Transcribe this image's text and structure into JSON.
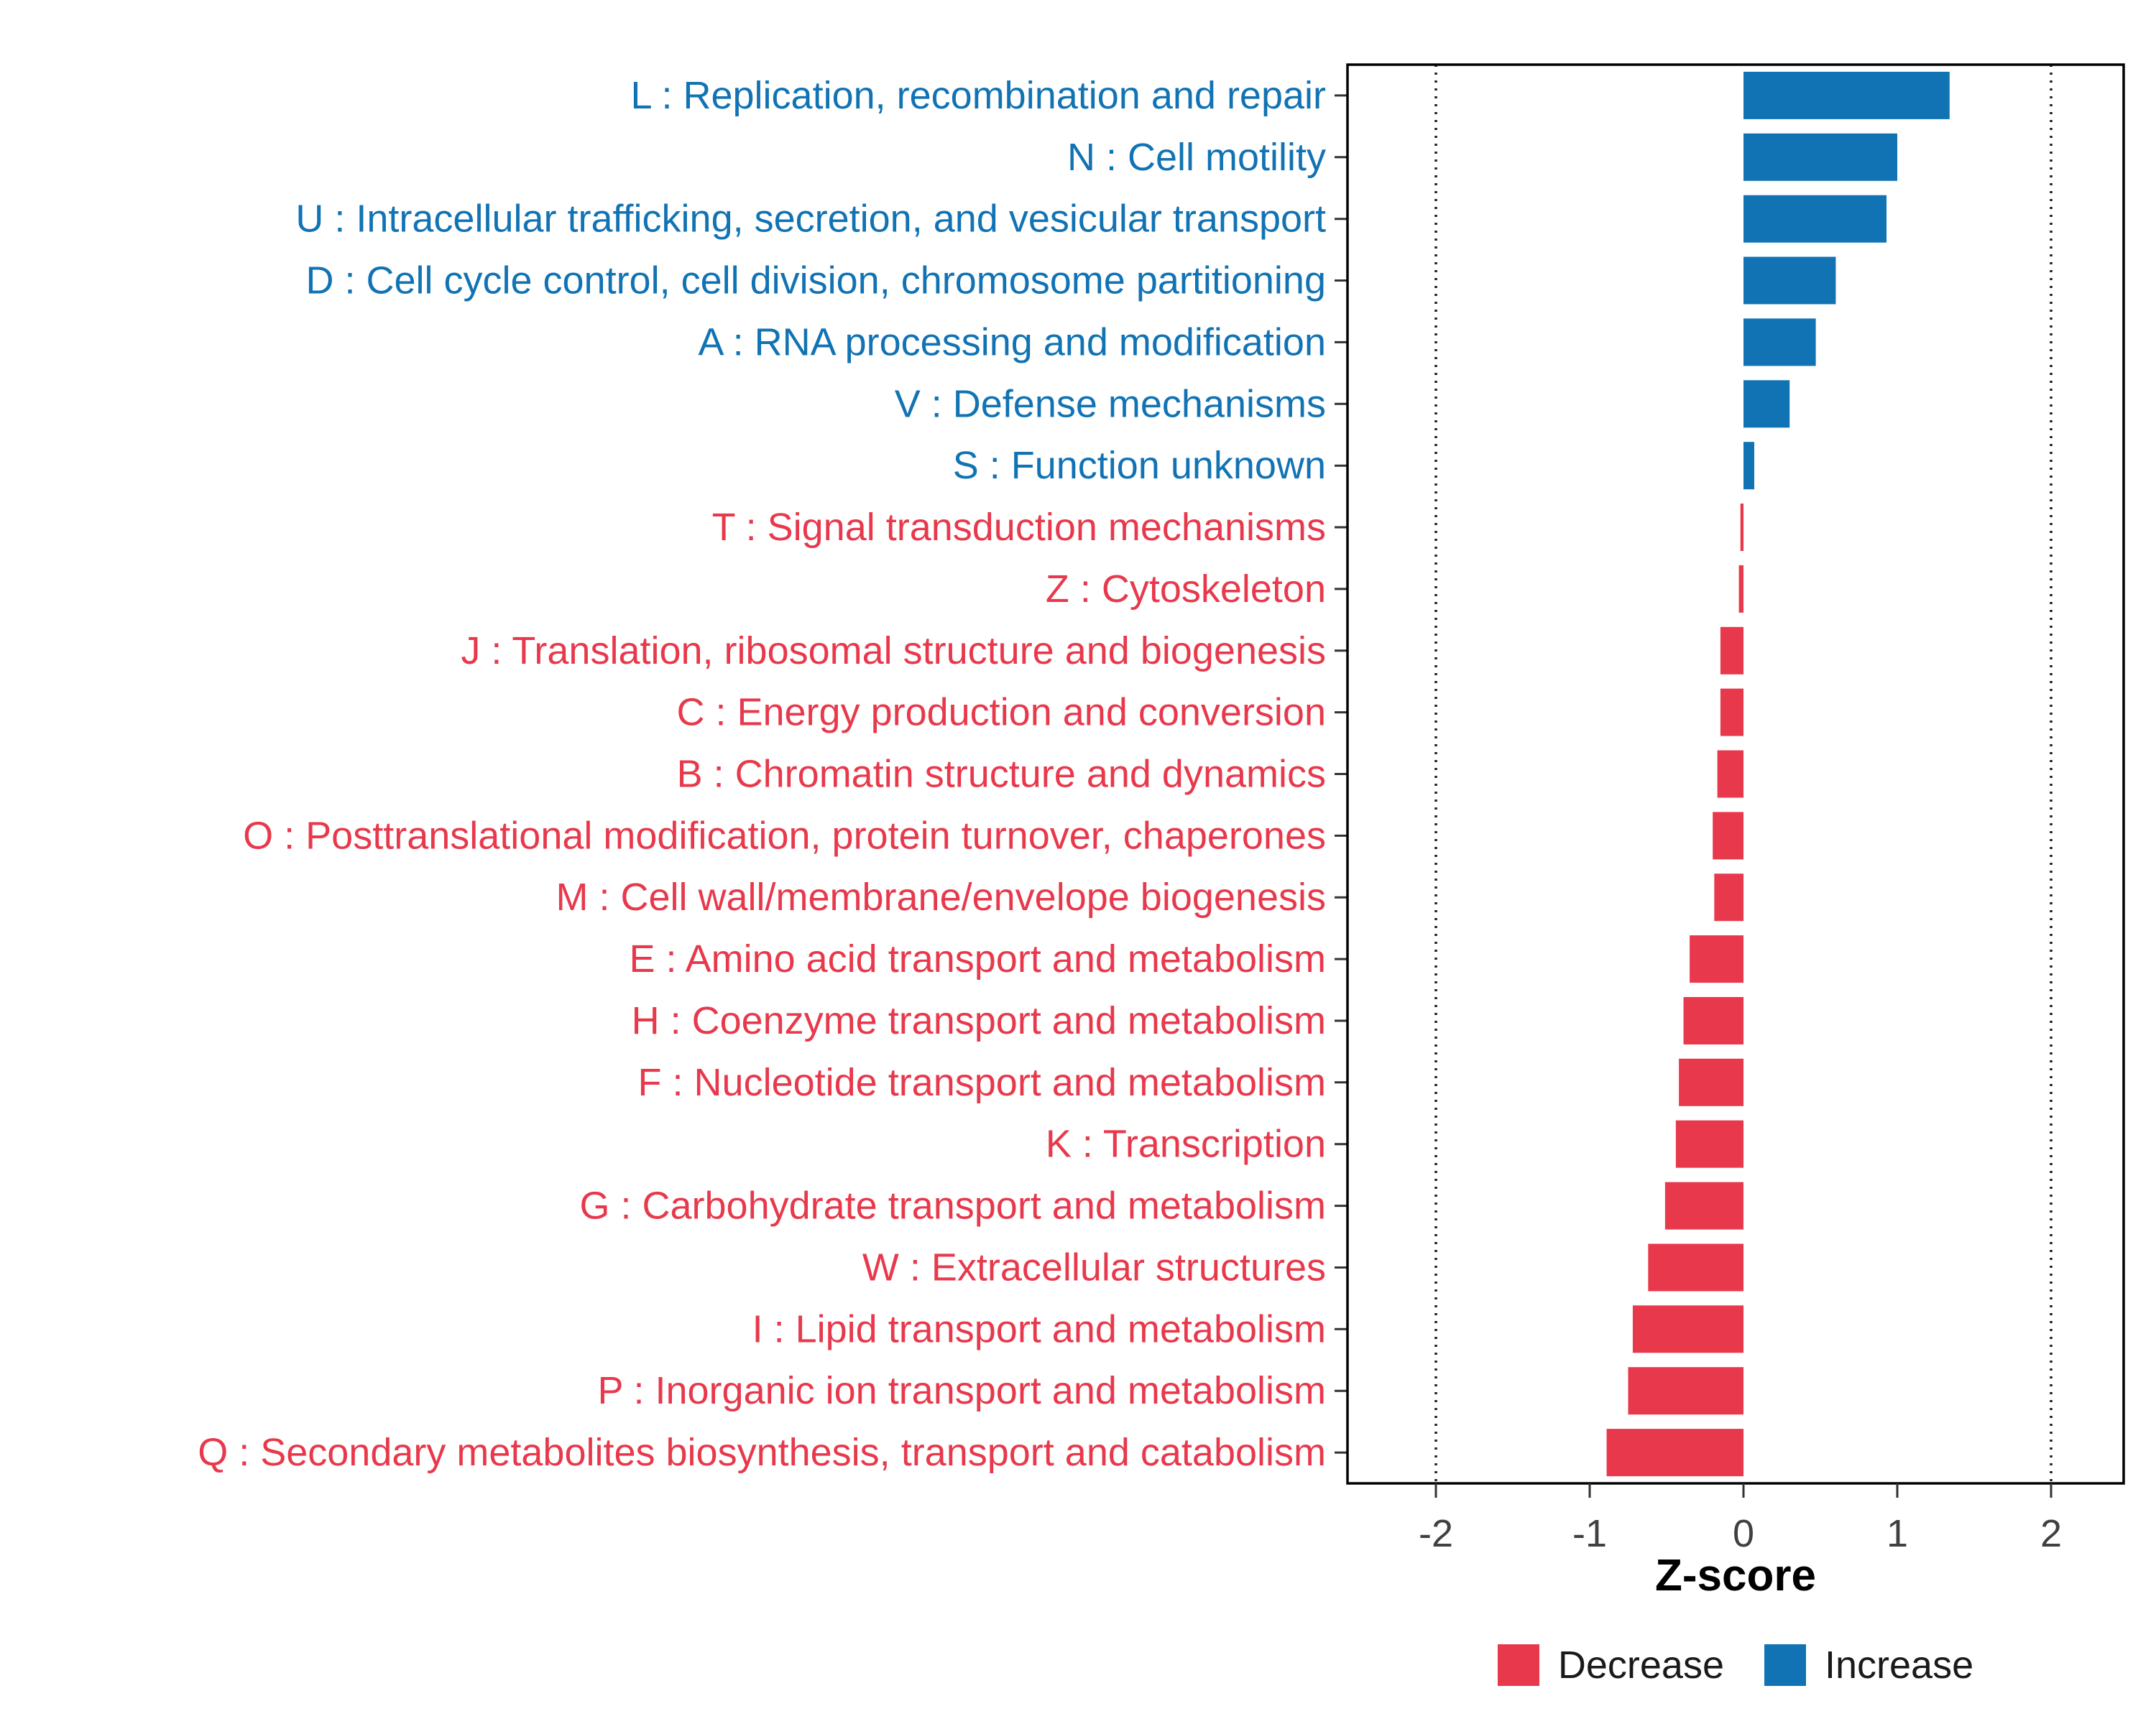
{
  "chart_data": {
    "type": "bar",
    "orientation": "horizontal",
    "title": "",
    "xlabel": "Z-score",
    "ylabel": "",
    "xlim": [
      -2.57,
      2.47
    ],
    "x_ticks": [
      -2,
      -1,
      0,
      1,
      2
    ],
    "reference_lines": [
      -2,
      2
    ],
    "grid": "off",
    "legend_position": "bottom",
    "categories": [
      "L : Replication, recombination and repair",
      "N : Cell motility",
      "U : Intracellular trafficking, secretion, and vesicular transport",
      "D : Cell cycle control, cell division, chromosome partitioning",
      "A : RNA processing and modification",
      "V : Defense mechanisms",
      "S : Function unknown",
      "T : Signal transduction mechanisms",
      "Z : Cytoskeleton",
      "J : Translation, ribosomal structure and biogenesis",
      "C : Energy production and conversion",
      "B : Chromatin structure and dynamics",
      "O : Posttranslational modification, protein turnover, chaperones",
      "M : Cell wall/membrane/envelope biogenesis",
      "E : Amino acid transport and metabolism",
      "H : Coenzyme transport and metabolism",
      "F : Nucleotide transport and metabolism",
      "K : Transcription",
      "G : Carbohydrate transport and metabolism",
      "W : Extracellular structures",
      "I : Lipid transport and metabolism",
      "P : Inorganic ion transport and metabolism",
      "Q : Secondary metabolites biosynthesis, transport and catabolism"
    ],
    "values": [
      1.34,
      1.0,
      0.93,
      0.6,
      0.47,
      0.3,
      0.07,
      -0.02,
      -0.03,
      -0.15,
      -0.15,
      -0.17,
      -0.2,
      -0.19,
      -0.35,
      -0.39,
      -0.42,
      -0.44,
      -0.51,
      -0.62,
      -0.72,
      -0.75,
      -0.89
    ],
    "directions": [
      "Increase",
      "Increase",
      "Increase",
      "Increase",
      "Increase",
      "Increase",
      "Increase",
      "Decrease",
      "Decrease",
      "Decrease",
      "Decrease",
      "Decrease",
      "Decrease",
      "Decrease",
      "Decrease",
      "Decrease",
      "Decrease",
      "Decrease",
      "Decrease",
      "Decrease",
      "Decrease",
      "Decrease",
      "Decrease"
    ],
    "colors": {
      "increase": "#1173B4",
      "decrease": "#E8394C",
      "axis_text": "#404040",
      "panel_border": "#000000",
      "reference_line": "#1a1a1a"
    },
    "legend": [
      {
        "label": "Decrease",
        "color": "#E8394C"
      },
      {
        "label": "Increase",
        "color": "#1173B4"
      }
    ]
  }
}
